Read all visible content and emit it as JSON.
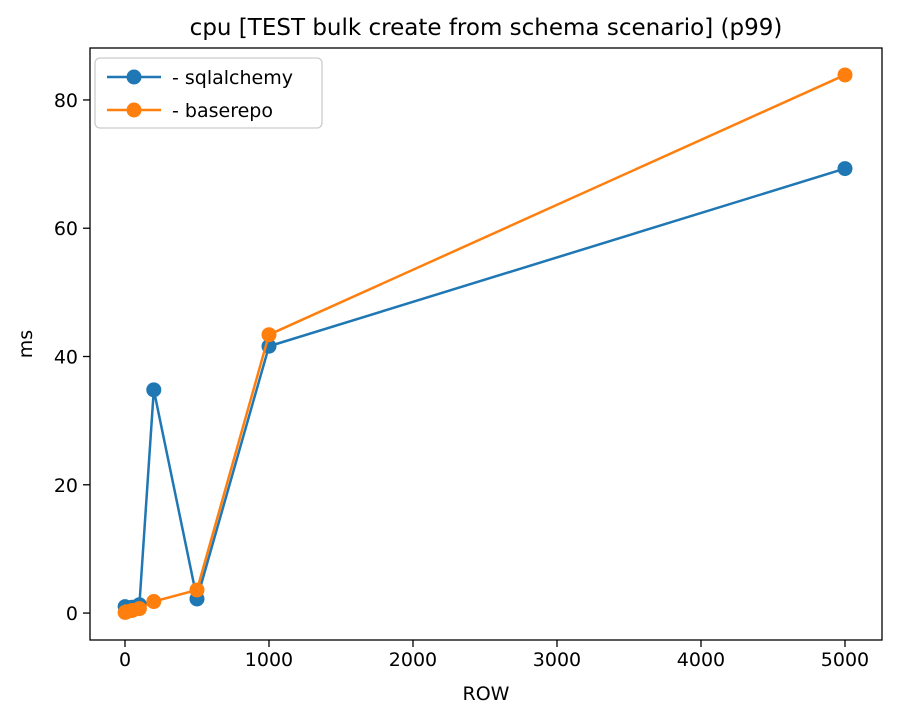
{
  "chart_data": {
    "type": "line",
    "title": "cpu [TEST bulk create from schema scenario] (p99)",
    "xlabel": "ROW",
    "ylabel": "ms",
    "x": [
      1,
      10,
      50,
      100,
      200,
      500,
      1000,
      5000
    ],
    "series": [
      {
        "name": "- sqlalchemy",
        "color": "#1f77b4",
        "values": [
          1.0,
          0.7,
          0.9,
          1.3,
          34.8,
          2.2,
          41.6,
          69.3
        ]
      },
      {
        "name": "- baserepo",
        "color": "#ff7f0e",
        "values": [
          0.1,
          0.2,
          0.4,
          0.7,
          1.8,
          3.6,
          43.4,
          83.9
        ]
      }
    ],
    "xticks": [
      0,
      1000,
      2000,
      3000,
      4000,
      5000
    ],
    "yticks": [
      0,
      20,
      40,
      60,
      80
    ],
    "xlim": [
      -243,
      5257
    ],
    "ylim": [
      -4.2,
      88.1
    ],
    "legend_position": "upper left",
    "grid": false,
    "marker": "circle",
    "background_color": "#ffffff",
    "spine_color": "#000000",
    "legend_border_color": "#cccccc"
  }
}
